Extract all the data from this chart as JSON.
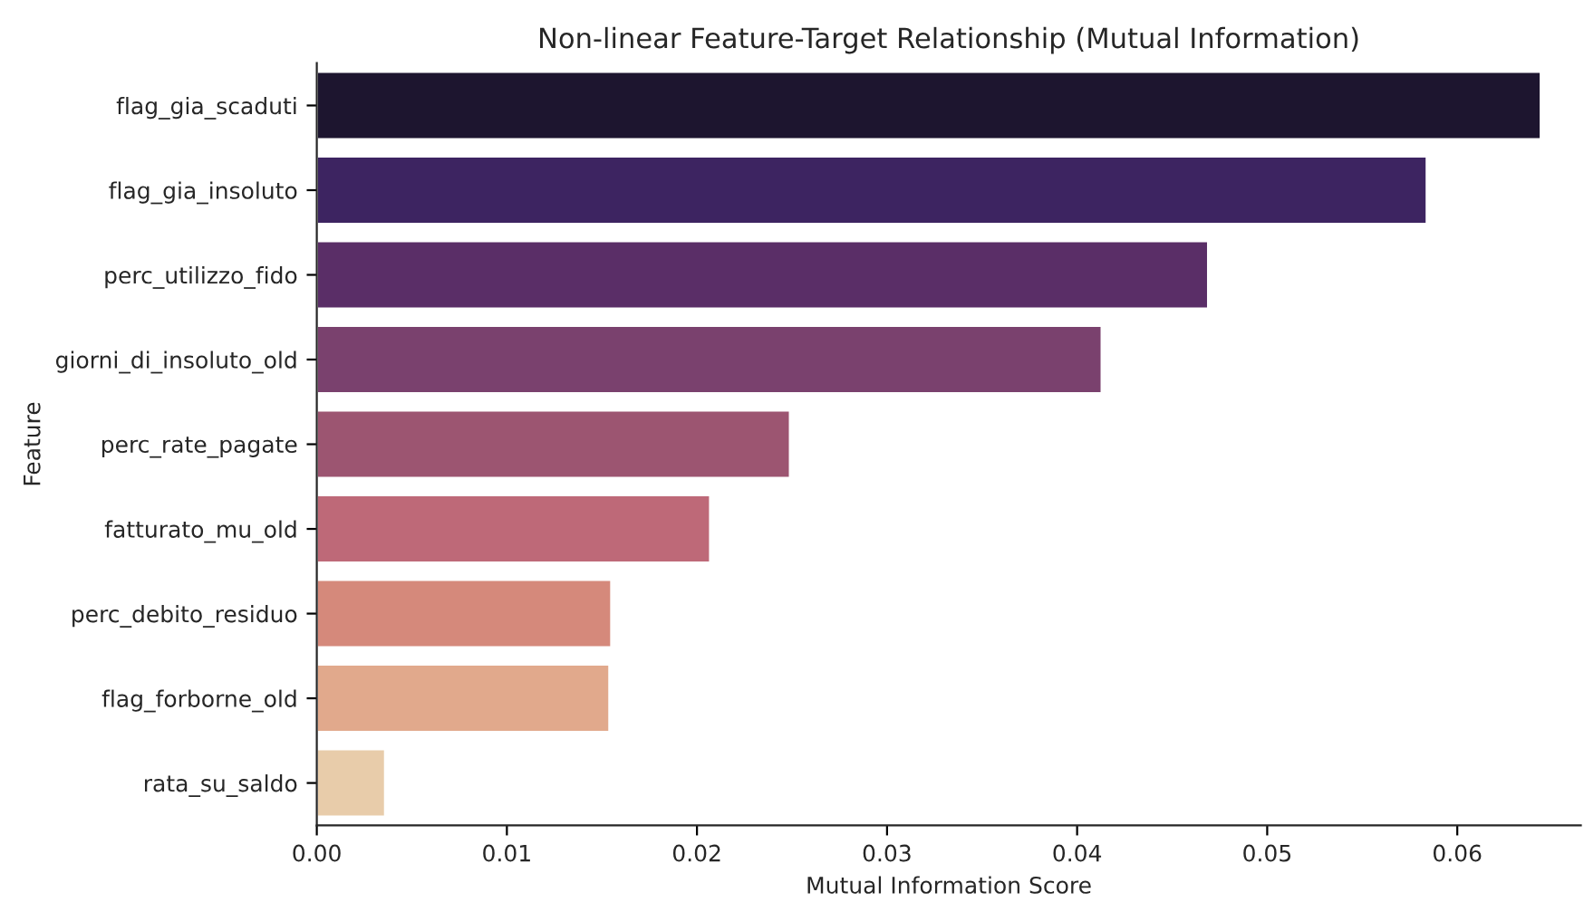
{
  "chart_data": {
    "type": "bar",
    "orientation": "horizontal",
    "title": "Non-linear Feature-Target Relationship (Mutual Information)",
    "xlabel": "Mutual Information Score",
    "ylabel": "Feature",
    "categories": [
      "flag_gia_scaduti",
      "flag_gia_insoluto",
      "perc_utilizzo_fido",
      "giorni_di_insoluto_old",
      "perc_rate_pagate",
      "fatturato_mu_old",
      "perc_debito_residuo",
      "flag_forborne_old",
      "rata_su_saldo"
    ],
    "values": [
      0.0644,
      0.0584,
      0.0469,
      0.0413,
      0.0249,
      0.0207,
      0.0155,
      0.0154,
      0.0036
    ],
    "colors": [
      "#1b1133",
      "#3b1a6b",
      "#5f2570",
      "#843774",
      "#a8496f",
      "#cc5b6f",
      "#e47f6c",
      "#efa57e",
      "#f3cd9f"
    ],
    "xlim": [
      0,
      0.0665
    ],
    "xticks": [
      {
        "value": 0,
        "label": "0.00"
      },
      {
        "value": 0.01,
        "label": "0.01"
      },
      {
        "value": 0.02,
        "label": "0.02"
      },
      {
        "value": 0.03,
        "label": "0.03"
      },
      {
        "value": 0.04,
        "label": "0.04"
      },
      {
        "value": 0.05,
        "label": "0.05"
      },
      {
        "value": 0.06,
        "label": "0.06"
      }
    ],
    "grid": false,
    "legend": false
  }
}
